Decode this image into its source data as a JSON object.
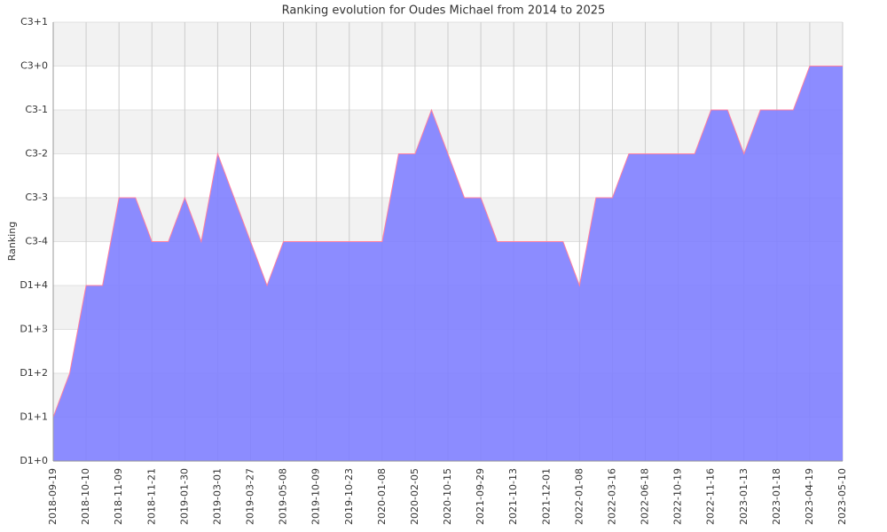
{
  "chart_data": {
    "type": "area",
    "title": "Ranking evolution for Oudes Michael from 2014 to 2025",
    "y_label": "Ranking",
    "categories": [
      "2018-09-19",
      null,
      "2018-10-10",
      null,
      "2018-11-09",
      null,
      "2018-11-21",
      null,
      "2019-01-30",
      null,
      "2019-03-01",
      null,
      "2019-03-27",
      null,
      "2019-05-08",
      null,
      "2019-10-09",
      null,
      "2019-10-23",
      null,
      "2020-01-08",
      null,
      "2020-02-05",
      null,
      "2020-10-15",
      null,
      "2021-09-29",
      null,
      "2021-10-13",
      null,
      "2021-12-01",
      null,
      "2022-01-08",
      null,
      "2022-03-16",
      null,
      "2022-06-18",
      null,
      "2022-10-19",
      null,
      "2022-11-16",
      null,
      "2023-01-13",
      null,
      "2023-01-18",
      null,
      "2023-04-19",
      null,
      "2023-05-10"
    ],
    "values": [
      1,
      2,
      4,
      4,
      6,
      6,
      5,
      5,
      6,
      5,
      7,
      6,
      5,
      4,
      5,
      5,
      5,
      5,
      5,
      5,
      5,
      7,
      7,
      8,
      7,
      6,
      6,
      5,
      5,
      5,
      5,
      5,
      4,
      6,
      6,
      7,
      7,
      7,
      7,
      7,
      8,
      8,
      7,
      8,
      8,
      8,
      9,
      9,
      9
    ],
    "color": "#7f7fff",
    "line_color": "#ff7f9f",
    "ylim": [
      0,
      10
    ],
    "yticks": [
      {
        "value": 0,
        "label": "D1+0"
      },
      {
        "value": 1,
        "label": "D1+1"
      },
      {
        "value": 2,
        "label": "D1+2"
      },
      {
        "value": 3,
        "label": "D1+3"
      },
      {
        "value": 4,
        "label": "D1+4"
      },
      {
        "value": 5,
        "label": "C3-4"
      },
      {
        "value": 6,
        "label": "C3-3"
      },
      {
        "value": 7,
        "label": "C3-2"
      },
      {
        "value": 8,
        "label": "C3-1"
      },
      {
        "value": 9,
        "label": "C3+0"
      },
      {
        "value": 10,
        "label": "C3+1"
      }
    ],
    "grid": true
  }
}
